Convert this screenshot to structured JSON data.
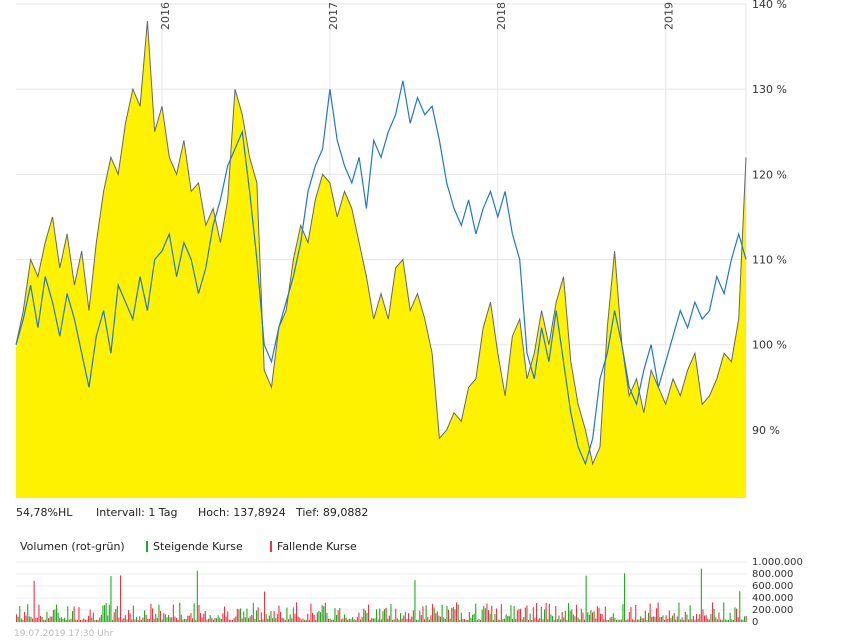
{
  "chart_data": [
    {
      "type": "area",
      "ylim": [
        82,
        140
      ],
      "y_ticks": [
        "90 %",
        "100 %",
        "110 %",
        "120 %",
        "130 %",
        "140 %"
      ],
      "y_tick_values": [
        90,
        100,
        110,
        120,
        130,
        140
      ],
      "x_years": [
        "2016",
        "2017",
        "2018",
        "2019"
      ],
      "x_year_positions": [
        0.2,
        0.43,
        0.66,
        0.89
      ],
      "series": [
        {
          "color": "#fff200",
          "x": [
            0,
            0.01,
            0.02,
            0.03,
            0.04,
            0.05,
            0.06,
            0.07,
            0.08,
            0.09,
            0.1,
            0.11,
            0.12,
            0.13,
            0.14,
            0.15,
            0.16,
            0.17,
            0.18,
            0.19,
            0.2,
            0.21,
            0.22,
            0.23,
            0.24,
            0.25,
            0.26,
            0.27,
            0.28,
            0.29,
            0.3,
            0.31,
            0.32,
            0.33,
            0.34,
            0.35,
            0.36,
            0.37,
            0.38,
            0.39,
            0.4,
            0.41,
            0.42,
            0.43,
            0.44,
            0.45,
            0.46,
            0.47,
            0.48,
            0.49,
            0.5,
            0.51,
            0.52,
            0.53,
            0.54,
            0.55,
            0.56,
            0.57,
            0.58,
            0.59,
            0.6,
            0.61,
            0.62,
            0.63,
            0.64,
            0.65,
            0.66,
            0.67,
            0.68,
            0.69,
            0.7,
            0.71,
            0.72,
            0.73,
            0.74,
            0.75,
            0.76,
            0.77,
            0.78,
            0.79,
            0.8,
            0.81,
            0.82,
            0.83,
            0.84,
            0.85,
            0.86,
            0.87,
            0.88,
            0.89,
            0.9,
            0.91,
            0.92,
            0.93,
            0.94,
            0.95,
            0.96,
            0.97,
            0.98,
            0.99,
            1.0
          ],
          "values": [
            100,
            104,
            110,
            108,
            112,
            115,
            109,
            113,
            107,
            111,
            104,
            112,
            118,
            122,
            120,
            126,
            130,
            128,
            138,
            125,
            128,
            122,
            120,
            124,
            118,
            119,
            114,
            116,
            112,
            117,
            130,
            127,
            122,
            119,
            97,
            95,
            102,
            104,
            110,
            114,
            112,
            117,
            120,
            119,
            115,
            118,
            116,
            112,
            108,
            103,
            106,
            103,
            109,
            110,
            104,
            106,
            103,
            99,
            89,
            90,
            92,
            91,
            95,
            96,
            102,
            105,
            99,
            94,
            101,
            103,
            96,
            99,
            104,
            100,
            105,
            108,
            98,
            93,
            90,
            86,
            88,
            102,
            111,
            100,
            94,
            96,
            92,
            97,
            95,
            93,
            96,
            94,
            97,
            99,
            93,
            94,
            96,
            99,
            98,
            103,
            122
          ]
        },
        {
          "color": "#1f78c8",
          "x": [
            0,
            0.01,
            0.02,
            0.03,
            0.04,
            0.05,
            0.06,
            0.07,
            0.08,
            0.09,
            0.1,
            0.11,
            0.12,
            0.13,
            0.14,
            0.15,
            0.16,
            0.17,
            0.18,
            0.19,
            0.2,
            0.21,
            0.22,
            0.23,
            0.24,
            0.25,
            0.26,
            0.27,
            0.28,
            0.29,
            0.3,
            0.31,
            0.32,
            0.33,
            0.34,
            0.35,
            0.36,
            0.37,
            0.38,
            0.39,
            0.4,
            0.41,
            0.42,
            0.43,
            0.44,
            0.45,
            0.46,
            0.47,
            0.48,
            0.49,
            0.5,
            0.51,
            0.52,
            0.53,
            0.54,
            0.55,
            0.56,
            0.57,
            0.58,
            0.59,
            0.6,
            0.61,
            0.62,
            0.63,
            0.64,
            0.65,
            0.66,
            0.67,
            0.68,
            0.69,
            0.7,
            0.71,
            0.72,
            0.73,
            0.74,
            0.75,
            0.76,
            0.77,
            0.78,
            0.79,
            0.8,
            0.81,
            0.82,
            0.83,
            0.84,
            0.85,
            0.86,
            0.87,
            0.88,
            0.89,
            0.9,
            0.91,
            0.92,
            0.93,
            0.94,
            0.95,
            0.96,
            0.97,
            0.98,
            0.99,
            1.0
          ],
          "values": [
            100,
            103,
            107,
            102,
            108,
            105,
            101,
            106,
            103,
            99,
            95,
            101,
            104,
            99,
            107,
            105,
            103,
            108,
            104,
            110,
            111,
            113,
            108,
            112,
            110,
            106,
            109,
            114,
            117,
            121,
            123,
            125,
            118,
            110,
            100,
            98,
            102,
            105,
            108,
            112,
            118,
            121,
            123,
            130,
            124,
            121,
            119,
            122,
            116,
            124,
            122,
            125,
            127,
            131,
            126,
            129,
            127,
            128,
            124,
            119,
            116,
            114,
            117,
            113,
            116,
            118,
            115,
            118,
            113,
            110,
            99,
            96,
            102,
            98,
            104,
            98,
            92,
            88,
            86,
            89,
            96,
            99,
            104,
            100,
            95,
            93,
            97,
            100,
            95,
            98,
            101,
            104,
            102,
            105,
            103,
            104,
            108,
            106,
            110,
            113,
            110
          ]
        }
      ]
    },
    {
      "type": "bar",
      "series": [
        {
          "name": "Steigende Kurse",
          "color": "#22aa22"
        },
        {
          "name": "Fallende Kurse",
          "color": "#ee3344"
        }
      ],
      "y_ticks": [
        "1.000.000",
        "800.000",
        "600.000",
        "400.000",
        "200.000",
        "0"
      ],
      "y_tick_values": [
        1000000,
        800000,
        600000,
        400000,
        200000,
        0
      ]
    }
  ],
  "info": {
    "hl": "54,78%HL",
    "interval": "Intervall: 1 Tag",
    "high": "Hoch: 137,8924",
    "low": "Tief: 89,0882"
  },
  "volume": {
    "title": "Volumen (rot-grün)",
    "rising": "Steigende Kurse",
    "falling": "Fallende Kurse"
  },
  "footer": "19.07.2019 17:30 Uhr"
}
